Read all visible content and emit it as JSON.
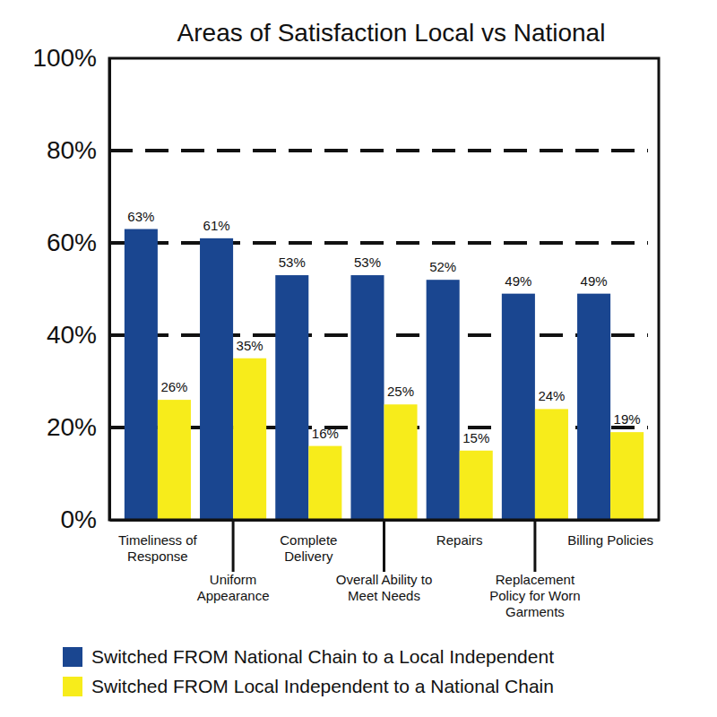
{
  "chart_data": {
    "type": "bar",
    "title": "Areas of Satisfaction Local vs National",
    "categories": [
      "Timeliness of Response",
      "Uniform Appearance",
      "Complete Delivery",
      "Overall Ability to Meet Needs",
      "Repairs",
      "Replacement Policy for Worn Garments",
      "Billing Policies"
    ],
    "series": [
      {
        "name": "Switched FROM National Chain to a Local Independent",
        "color": "#1a4690",
        "values": [
          63,
          61,
          53,
          53,
          52,
          49,
          49
        ],
        "value_labels": [
          "63%",
          "61%",
          "53%",
          "53%",
          "52%",
          "49%",
          "49%"
        ]
      },
      {
        "name": "Switched FROM Local Independent to a National Chain",
        "color": "#f7ec1b",
        "values": [
          26,
          35,
          16,
          25,
          15,
          24,
          19
        ],
        "value_labels": [
          "26%",
          "35%",
          "16%",
          "25%",
          "15%",
          "24%",
          "19%"
        ]
      }
    ],
    "ylim": [
      0,
      100
    ],
    "yticks": [
      {
        "value": 0,
        "label": "0%"
      },
      {
        "value": 20,
        "label": "20%"
      },
      {
        "value": 40,
        "label": "40%"
      },
      {
        "value": 60,
        "label": "60%"
      },
      {
        "value": 80,
        "label": "80%"
      },
      {
        "value": 100,
        "label": "100%"
      }
    ],
    "grid": true,
    "data_labels": true,
    "legend": "bottom"
  }
}
